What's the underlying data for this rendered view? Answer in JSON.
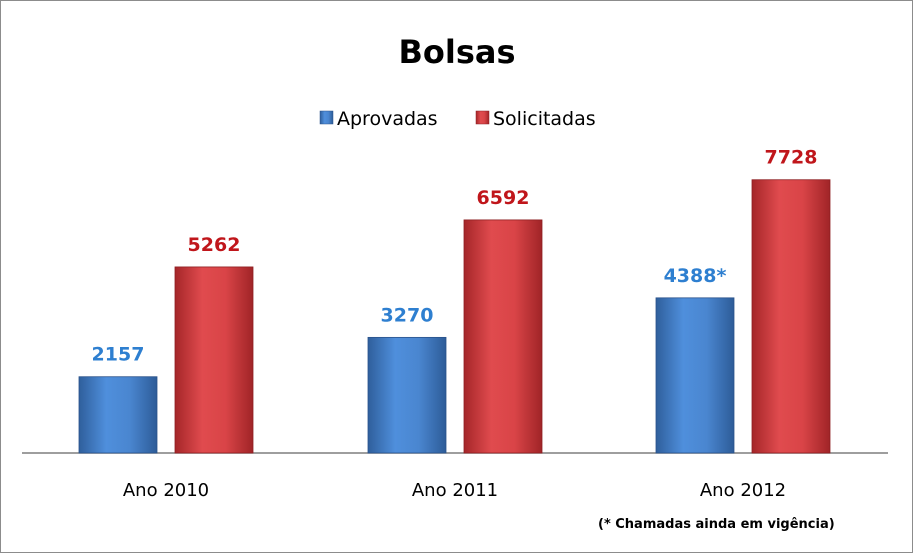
{
  "chart_data": {
    "type": "bar",
    "title": "Bolsas",
    "categories": [
      "Ano 2010",
      "Ano 2011",
      "Ano 2012"
    ],
    "series": [
      {
        "name": "Aprovadas",
        "values": [
          2157,
          3270,
          4388
        ],
        "labels": [
          "2157",
          "3270",
          "4388*"
        ],
        "color": "#3a74be",
        "label_color": "#2e7fd0"
      },
      {
        "name": "Solicitadas",
        "values": [
          5262,
          6592,
          7728
        ],
        "labels": [
          "5262",
          "6592",
          "7728"
        ],
        "color": "#c8373a",
        "label_color": "#c0161b"
      }
    ],
    "ylim": [
      0,
      8000
    ],
    "grid": false,
    "legend_position": "top",
    "note": "(* Chamadas ainda em vigência)"
  }
}
